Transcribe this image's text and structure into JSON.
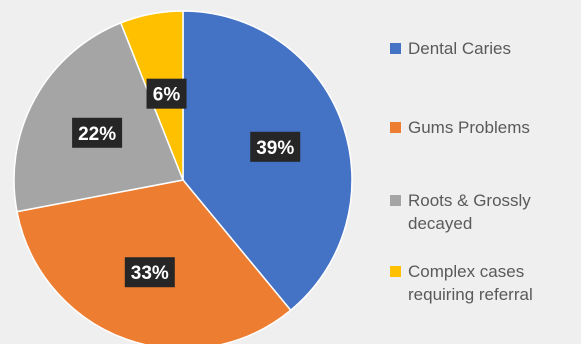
{
  "chart_data": {
    "type": "pie",
    "title": "",
    "slices": [
      {
        "label": "Dental Caries",
        "value": 39,
        "data_label": "39%",
        "color": "#4472c4"
      },
      {
        "label": "Gums Problems",
        "value": 33,
        "data_label": "33%",
        "color": "#ed7d31"
      },
      {
        "label": "Roots & Grossly decayed",
        "value": 22,
        "data_label": "22%",
        "color": "#a5a5a5"
      },
      {
        "label": "Complex cases requiring referral",
        "value": 6,
        "data_label": "6%",
        "color": "#ffc000"
      }
    ],
    "legend_position": "right",
    "start_angle_deg": 0,
    "direction": "clockwise"
  },
  "legend": {
    "items": [
      {
        "label": "Dental Caries",
        "color": "#4472c4"
      },
      {
        "label": "Gums Problems",
        "color": "#ed7d31"
      },
      {
        "label": "Roots & Grossly\ndecayed",
        "color": "#a5a5a5"
      },
      {
        "label": "Complex cases\nrequiring referral",
        "color": "#ffc000"
      }
    ]
  },
  "colors": {
    "data_label_bg": "#262626",
    "data_label_text": "#ffffff",
    "slice_border": "#ffffff",
    "background": "#efefef"
  }
}
